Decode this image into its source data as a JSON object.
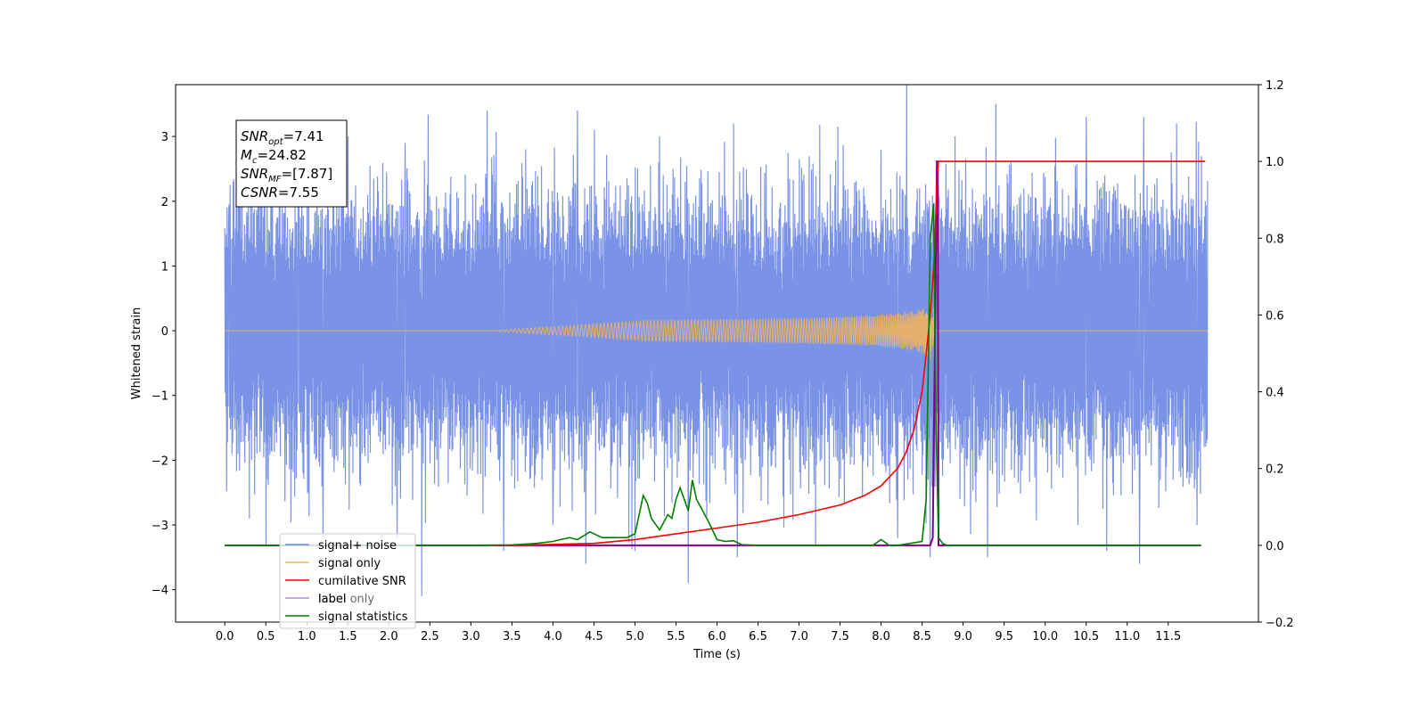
{
  "chart_data": {
    "type": "line",
    "xlabel": "Time (s)",
    "ylabel_left": "Whitened strain",
    "xlim": [
      -0.6,
      12.6
    ],
    "ylim_left": [
      -4.5,
      3.8
    ],
    "ylim_right": [
      -0.2,
      1.2
    ],
    "x_ticks": [
      "0.0",
      "0.5",
      "1.0",
      "1.5",
      "2.0",
      "2.5",
      "3.0",
      "3.5",
      "4.0",
      "4.5",
      "5.0",
      "5.5",
      "6.0",
      "6.5",
      "7.0",
      "7.5",
      "8.0",
      "8.5",
      "9.0",
      "9.5",
      "10.0",
      "10.5",
      "11.0",
      "11.5"
    ],
    "y_ticks_left": [
      "3",
      "2",
      "1",
      "0",
      "−1",
      "−2",
      "−3",
      "−4"
    ],
    "y_ticks_right": [
      "1.2",
      "1.0",
      "0.8",
      "0.6",
      "0.4",
      "0.2",
      "0.0",
      "−0.2"
    ],
    "grid": false,
    "legend_position": "lower-left",
    "annotations": {
      "snr_opt": {
        "name": "SNR",
        "sub": "opt",
        "value": "=7.41"
      },
      "mc": {
        "name": "M",
        "sub": "c",
        "value": "=24.82"
      },
      "snr_mf": {
        "name": "SNR",
        "sub": "MF",
        "value": "=[7.87]"
      },
      "csnr": {
        "name": "CSNR",
        "sub": "",
        "value": "=7.55"
      }
    },
    "series": [
      {
        "name": "signal+ noise",
        "axis": "left",
        "color": "#6b87e4",
        "noise_band": [
          -1.8,
          2.2
        ],
        "peaks_up": [
          [
            0.05,
            1.95
          ],
          [
            0.1,
            2.3
          ],
          [
            0.5,
            3.4
          ],
          [
            0.9,
            2.6
          ],
          [
            1.5,
            3.0
          ],
          [
            2.2,
            2.9
          ],
          [
            3.2,
            3.4
          ],
          [
            4.0,
            3.3
          ],
          [
            4.3,
            3.4
          ],
          [
            5.3,
            3.0
          ],
          [
            6.2,
            3.2
          ],
          [
            7.2,
            3.0
          ],
          [
            8.0,
            2.8
          ],
          [
            8.9,
            3.0
          ],
          [
            9.4,
            3.5
          ],
          [
            10.5,
            3.3
          ],
          [
            11.2,
            3.3
          ],
          [
            11.6,
            3.2
          ],
          [
            11.95,
            2.25
          ]
        ],
        "peaks_down": [
          [
            0.3,
            -2.9
          ],
          [
            0.5,
            -3.3
          ],
          [
            1.2,
            -3.2
          ],
          [
            2.1,
            -3.2
          ],
          [
            2.4,
            -4.1
          ],
          [
            3.4,
            -3.4
          ],
          [
            4.0,
            -3.0
          ],
          [
            4.4,
            -3.6
          ],
          [
            5.0,
            -3.4
          ],
          [
            5.65,
            -3.9
          ],
          [
            6.25,
            -3.5
          ],
          [
            7.2,
            -3.3
          ],
          [
            8.2,
            -3.2
          ],
          [
            8.6,
            -3.5
          ],
          [
            9.3,
            -3.5
          ],
          [
            10.4,
            -3.0
          ],
          [
            10.75,
            -3.4
          ],
          [
            11.15,
            -3.6
          ],
          [
            11.85,
            -3.0
          ],
          [
            11.95,
            -1.3
          ]
        ]
      },
      {
        "name": "signal only",
        "axis": "left",
        "color": "#ffb84d",
        "merger_time": 8.65,
        "peak_amplitude": 0.6
      },
      {
        "name": "cumilative SNR",
        "axis": "right",
        "color": "#ff0000",
        "x": [
          3.5,
          4.5,
          5.0,
          5.5,
          6.0,
          6.5,
          7.0,
          7.5,
          7.8,
          8.0,
          8.2,
          8.3,
          8.4,
          8.5,
          8.55,
          8.6,
          8.65,
          8.68,
          8.7,
          11.95
        ],
        "values": [
          0.0,
          0.005,
          0.015,
          0.03,
          0.045,
          0.06,
          0.08,
          0.105,
          0.13,
          0.155,
          0.2,
          0.24,
          0.3,
          0.4,
          0.5,
          0.6,
          0.75,
          0.95,
          1.0,
          1.0
        ]
      },
      {
        "name": "label",
        "axis": "right",
        "color": "#800080",
        "x": [
          0.0,
          8.6,
          8.63,
          8.68,
          8.69,
          8.7,
          11.9
        ],
        "values": [
          0.0,
          0.0,
          0.02,
          1.0,
          1.0,
          0.0,
          0.0
        ]
      },
      {
        "name": "label only",
        "axis": "right",
        "color": "#c9b3e8",
        "x": [],
        "values": []
      },
      {
        "name": "signal statistics",
        "axis": "right",
        "color": "#008000",
        "x": [
          0.0,
          3.0,
          3.5,
          3.8,
          4.0,
          4.2,
          4.3,
          4.45,
          4.6,
          4.8,
          4.9,
          5.0,
          5.1,
          5.15,
          5.2,
          5.3,
          5.35,
          5.4,
          5.45,
          5.5,
          5.55,
          5.6,
          5.65,
          5.7,
          5.75,
          5.8,
          5.9,
          6.0,
          6.1,
          6.2,
          6.3,
          6.5,
          7.0,
          7.9,
          8.0,
          8.1,
          8.2,
          8.5,
          8.55,
          8.6,
          8.64,
          8.67,
          8.7,
          8.75,
          8.8,
          11.9
        ],
        "values": [
          0.0,
          0.0,
          0.001,
          0.005,
          0.01,
          0.02,
          0.015,
          0.035,
          0.02,
          0.02,
          0.02,
          0.03,
          0.13,
          0.11,
          0.07,
          0.04,
          0.06,
          0.08,
          0.07,
          0.12,
          0.15,
          0.12,
          0.09,
          0.17,
          0.12,
          0.1,
          0.06,
          0.015,
          0.01,
          0.012,
          0.002,
          0.0,
          0.0,
          0.0,
          0.015,
          0.0,
          0.0,
          0.01,
          0.12,
          0.8,
          0.89,
          0.3,
          0.02,
          0.005,
          0.0,
          0.0
        ]
      }
    ]
  }
}
